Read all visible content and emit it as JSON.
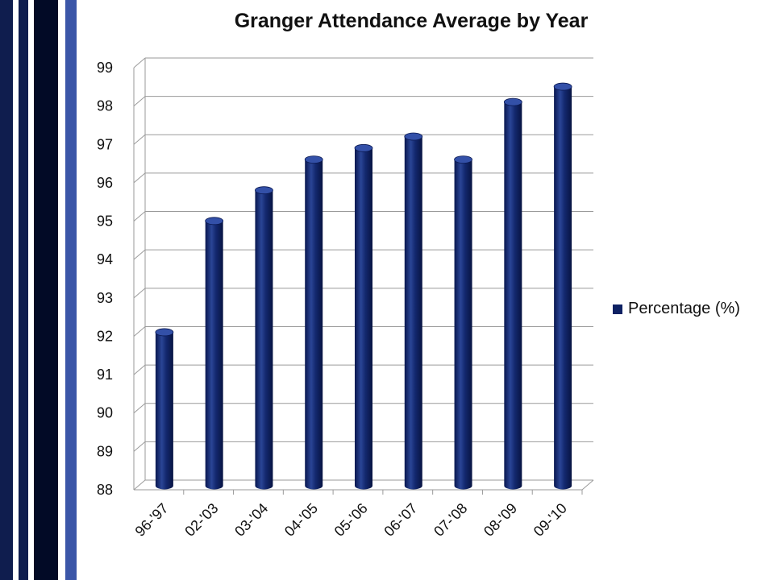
{
  "chart_data": {
    "type": "bar",
    "title": "Granger Attendance Average by Year",
    "categories": [
      "96-'97",
      "02-'03",
      "03-'04",
      "04-'05",
      "05-'06",
      "06-'07",
      "07-'08",
      "08-'09",
      "09-'10"
    ],
    "series": [
      {
        "name": "Percentage (%)",
        "values": [
          92.0,
          94.9,
          95.7,
          96.5,
          96.8,
          97.1,
          96.5,
          98.0,
          98.4
        ]
      }
    ],
    "y_ticks": [
      88,
      89,
      90,
      91,
      92,
      93,
      94,
      95,
      96,
      97,
      98,
      99
    ],
    "ylim": [
      88,
      99
    ],
    "xlabel": "",
    "ylabel": "",
    "grid": true,
    "legend_position": "right",
    "style": "3d-cylinder",
    "colors": {
      "bar": "#0e2163",
      "bar_highlight": "#3350a8",
      "grid": "#9a9a9a"
    }
  }
}
